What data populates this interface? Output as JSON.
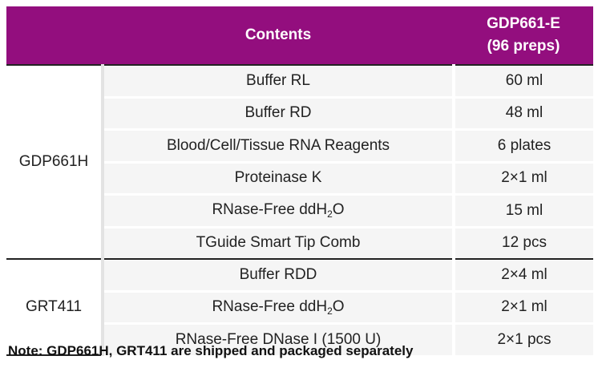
{
  "header": {
    "contents": "Contents",
    "product_code": "GDP661-E",
    "product_size": "(96 preps)"
  },
  "groups": [
    {
      "name": "GDP661H",
      "items": [
        {
          "name": "Buffer RL",
          "qty": "60 ml"
        },
        {
          "name": "Buffer RD",
          "qty": "48 ml"
        },
        {
          "name": "Blood/Cell/Tissue RNA Reagents",
          "qty": "6 plates"
        },
        {
          "name": "Proteinase K",
          "qty": "2×1 ml"
        },
        {
          "name_prefix": "RNase-Free ddH",
          "name_sub": "2",
          "name_suffix": "O",
          "qty": "15 ml"
        },
        {
          "name": "TGuide Smart Tip Comb",
          "qty": "12 pcs"
        }
      ]
    },
    {
      "name": "GRT411",
      "items": [
        {
          "name": "Buffer RDD",
          "qty": "2×4 ml"
        },
        {
          "name_prefix": "RNase-Free ddH",
          "name_sub": "2",
          "name_suffix": "O",
          "qty": "2×1 ml"
        },
        {
          "name": "RNase-Free DNase I (1500 U)",
          "qty": "2×1 pcs"
        }
      ]
    }
  ],
  "note": "Note: GDP661H, GRT411 are shipped and packaged separately",
  "colors": {
    "header_bg": "#930E7E",
    "row_bg": "#f5f5f5"
  }
}
